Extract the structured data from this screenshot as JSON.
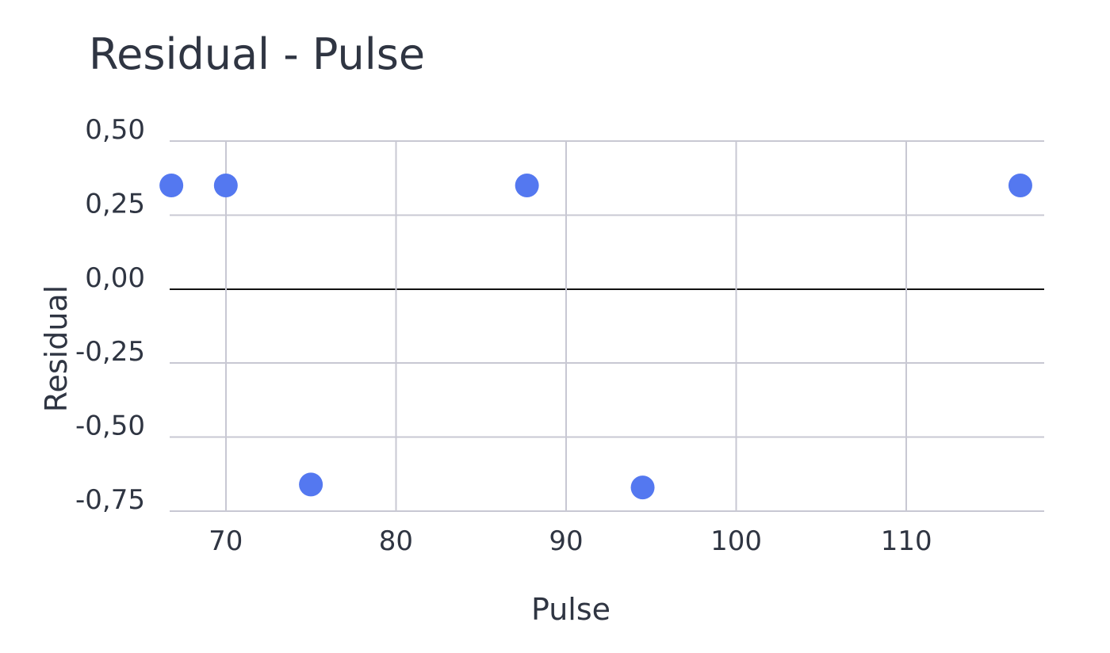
{
  "chart_data": {
    "type": "scatter",
    "title": "Residual - Pulse",
    "xlabel": "Pulse",
    "ylabel": "Residual",
    "xlim": [
      66.7,
      118.1
    ],
    "ylim": [
      -0.75,
      0.5
    ],
    "grid": true,
    "x_ticks": [
      70,
      80,
      90,
      100,
      110
    ],
    "x_tick_labels": [
      "70",
      "80",
      "90",
      "100",
      "110"
    ],
    "y_ticks": [
      0.5,
      0.25,
      0.0,
      -0.25,
      -0.5,
      -0.75
    ],
    "y_tick_labels": [
      "0,50",
      "0,25",
      "0,00",
      "-0,25",
      "-0,50",
      "-0,75"
    ],
    "series": [
      {
        "color": "#5478f0",
        "points": [
          {
            "x": 66.8,
            "y": 0.35
          },
          {
            "x": 70.0,
            "y": 0.35
          },
          {
            "x": 75.0,
            "y": -0.66
          },
          {
            "x": 87.7,
            "y": 0.35
          },
          {
            "x": 94.5,
            "y": -0.67
          },
          {
            "x": 116.7,
            "y": 0.35
          }
        ]
      }
    ]
  }
}
